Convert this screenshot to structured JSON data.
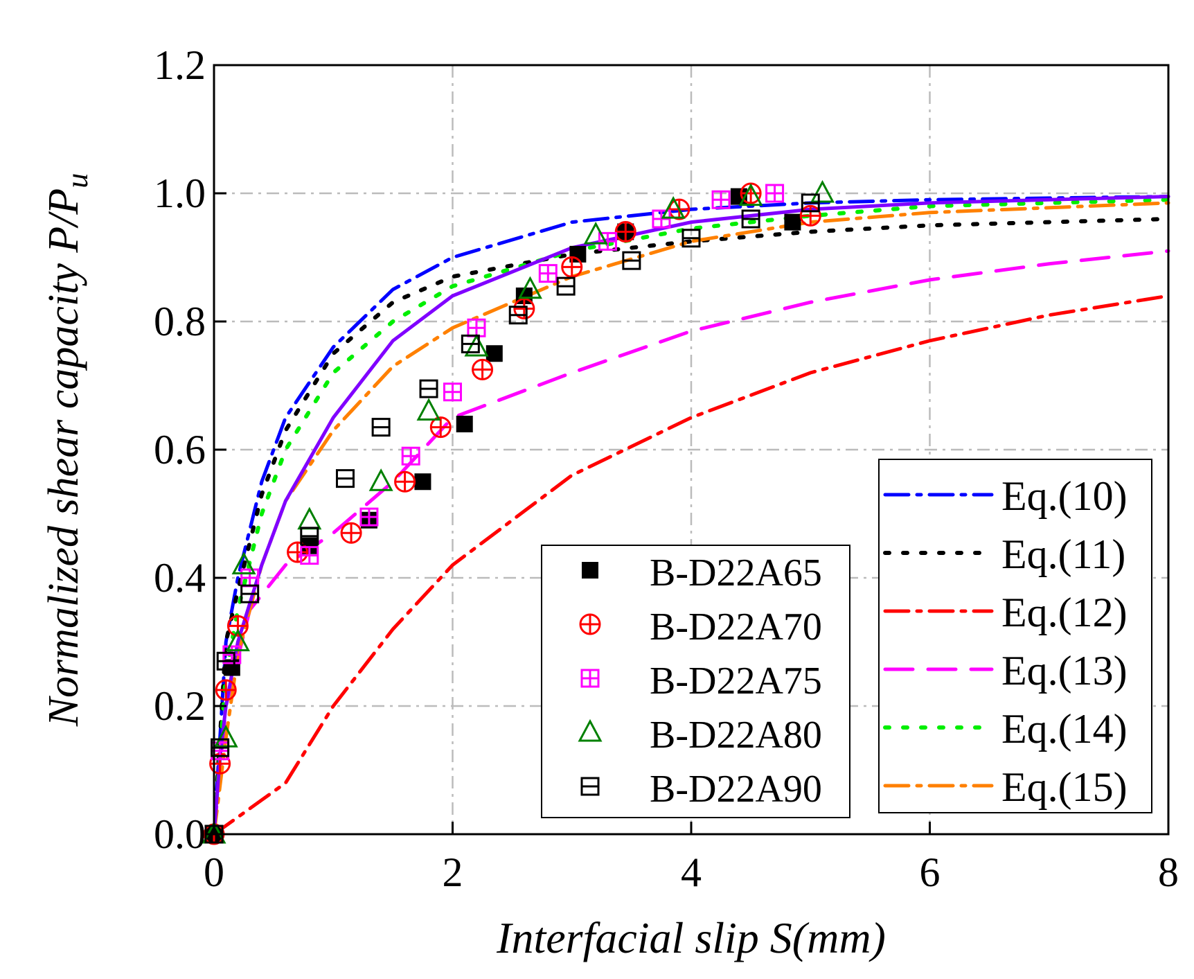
{
  "chart_data": {
    "type": "scatter",
    "xlabel": "Interfacial slip S(mm)",
    "ylabel_main": "Normalized shear capacity P/P",
    "ylabel_sub": "u",
    "xlim": [
      0,
      8
    ],
    "ylim": [
      0,
      1.2
    ],
    "xticks": [
      "0",
      "2",
      "4",
      "6",
      "8"
    ],
    "yticks": [
      "0.0",
      "0.2",
      "0.4",
      "0.6",
      "0.8",
      "1.0",
      "1.2"
    ],
    "grid": true,
    "marker_legend_placement": "lower-center",
    "line_legend_placement": "lower-right",
    "markers": [
      {
        "name": "B-D22A65",
        "marker": "filled-square",
        "color": "#000000",
        "points": [
          [
            0,
            0
          ],
          [
            0.15,
            0.26
          ],
          [
            0.8,
            0.45
          ],
          [
            1.3,
            0.49
          ],
          [
            1.75,
            0.55
          ],
          [
            2.1,
            0.64
          ],
          [
            2.35,
            0.75
          ],
          [
            2.6,
            0.84
          ],
          [
            3.05,
            0.905
          ],
          [
            3.45,
            0.94
          ],
          [
            4.4,
            0.995
          ],
          [
            4.85,
            0.955
          ]
        ]
      },
      {
        "name": "B-D22A70",
        "marker": "circle-plus",
        "color": "#ff0000",
        "points": [
          [
            0,
            0
          ],
          [
            0.05,
            0.11
          ],
          [
            0.1,
            0.225
          ],
          [
            0.2,
            0.325
          ],
          [
            0.7,
            0.44
          ],
          [
            1.15,
            0.47
          ],
          [
            1.6,
            0.55
          ],
          [
            1.9,
            0.635
          ],
          [
            2.25,
            0.725
          ],
          [
            2.6,
            0.82
          ],
          [
            3,
            0.885
          ],
          [
            3.45,
            0.94
          ],
          [
            3.9,
            0.975
          ],
          [
            4.5,
            1.0
          ],
          [
            5,
            0.965
          ]
        ]
      },
      {
        "name": "B-D22A75",
        "marker": "square-grid",
        "color": "#ff00ff",
        "points": [
          [
            0.05,
            0.13
          ],
          [
            0.15,
            0.28
          ],
          [
            0.3,
            0.4
          ],
          [
            0.8,
            0.435
          ],
          [
            1.3,
            0.495
          ],
          [
            1.65,
            0.59
          ],
          [
            2,
            0.69
          ],
          [
            2.2,
            0.79
          ],
          [
            2.8,
            0.875
          ],
          [
            3.3,
            0.925
          ],
          [
            3.75,
            0.96
          ],
          [
            4.25,
            0.99
          ],
          [
            4.7,
            1.0
          ]
        ]
      },
      {
        "name": "B-D22A80",
        "marker": "triangle",
        "color": "#008000",
        "points": [
          [
            0,
            0
          ],
          [
            0.1,
            0.15
          ],
          [
            0.2,
            0.3
          ],
          [
            0.25,
            0.42
          ],
          [
            0.8,
            0.49
          ],
          [
            1.4,
            0.55
          ],
          [
            1.8,
            0.66
          ],
          [
            2.2,
            0.76
          ],
          [
            2.65,
            0.85
          ],
          [
            3.2,
            0.935
          ],
          [
            3.85,
            0.975
          ],
          [
            4.5,
            0.995
          ],
          [
            5.1,
            1.0
          ]
        ]
      },
      {
        "name": "B-D22A90",
        "marker": "square-bar",
        "color": "#000000",
        "points": [
          [
            0,
            0
          ],
          [
            0.05,
            0.135
          ],
          [
            0.1,
            0.27
          ],
          [
            0.3,
            0.375
          ],
          [
            0.8,
            0.465
          ],
          [
            1.1,
            0.555
          ],
          [
            1.4,
            0.635
          ],
          [
            1.8,
            0.695
          ],
          [
            2.15,
            0.765
          ],
          [
            2.55,
            0.81
          ],
          [
            2.95,
            0.855
          ],
          [
            3.5,
            0.895
          ],
          [
            4,
            0.93
          ],
          [
            4.5,
            0.96
          ],
          [
            5,
            0.985
          ]
        ]
      }
    ],
    "lines": [
      {
        "name": "Eq.(10)",
        "color": "#0000ff",
        "dash": "dash-dot",
        "x": [
          0,
          0.1,
          0.2,
          0.4,
          0.6,
          1,
          1.5,
          2,
          3,
          4,
          5,
          6,
          8
        ],
        "y": [
          0,
          0.3,
          0.4,
          0.55,
          0.65,
          0.76,
          0.85,
          0.9,
          0.955,
          0.975,
          0.985,
          0.99,
          0.995
        ]
      },
      {
        "name": "Eq.(11)",
        "color": "#000000",
        "dash": "dotted",
        "x": [
          0,
          0.1,
          0.2,
          0.4,
          0.6,
          1,
          1.5,
          2,
          3,
          4,
          5,
          6,
          8
        ],
        "y": [
          0,
          0.3,
          0.38,
          0.53,
          0.63,
          0.75,
          0.83,
          0.87,
          0.905,
          0.925,
          0.94,
          0.95,
          0.96
        ]
      },
      {
        "name": "Eq.(12)",
        "color": "#ff0000",
        "dash": "dash-dot",
        "x": [
          0,
          0.3,
          0.6,
          1,
          1.5,
          2,
          3,
          4,
          5,
          6,
          7,
          8
        ],
        "y": [
          0,
          0.04,
          0.08,
          0.2,
          0.32,
          0.42,
          0.56,
          0.65,
          0.72,
          0.77,
          0.81,
          0.84
        ]
      },
      {
        "name": "Eq.(13)",
        "color": "#ff00ff",
        "dash": "dashed",
        "x": [
          0,
          0.1,
          0.3,
          0.6,
          1,
          1.5,
          2,
          3,
          4,
          5,
          6,
          7,
          8
        ],
        "y": [
          0,
          0.2,
          0.35,
          0.42,
          0.47,
          0.55,
          0.65,
          0.72,
          0.785,
          0.83,
          0.865,
          0.89,
          0.91
        ]
      },
      {
        "name": "Eq.(14)",
        "color": "#00ee00",
        "dash": "dotted",
        "x": [
          0,
          0.1,
          0.2,
          0.4,
          0.6,
          1,
          1.5,
          2,
          3,
          4,
          5,
          6,
          8
        ],
        "y": [
          0,
          0.25,
          0.35,
          0.5,
          0.6,
          0.72,
          0.8,
          0.855,
          0.91,
          0.945,
          0.965,
          0.98,
          0.99
        ]
      },
      {
        "name": "Eq.(15)",
        "color": "#ff8000",
        "dash": "dash-dot",
        "x": [
          0,
          0.1,
          0.2,
          0.4,
          0.6,
          1,
          1.5,
          2,
          3,
          4,
          5,
          6,
          8
        ],
        "y": [
          0,
          0.15,
          0.28,
          0.42,
          0.52,
          0.63,
          0.73,
          0.79,
          0.87,
          0.925,
          0.955,
          0.97,
          0.985
        ]
      },
      {
        "name": "",
        "color": "#8000ff",
        "dash": "solid",
        "x": [
          0,
          0.05,
          0.1,
          0.2,
          0.4,
          0.6,
          1,
          1.5,
          2,
          3,
          4,
          5,
          6,
          8
        ],
        "y": [
          0,
          0.12,
          0.2,
          0.3,
          0.42,
          0.52,
          0.65,
          0.77,
          0.84,
          0.915,
          0.955,
          0.975,
          0.985,
          0.995
        ]
      }
    ]
  }
}
